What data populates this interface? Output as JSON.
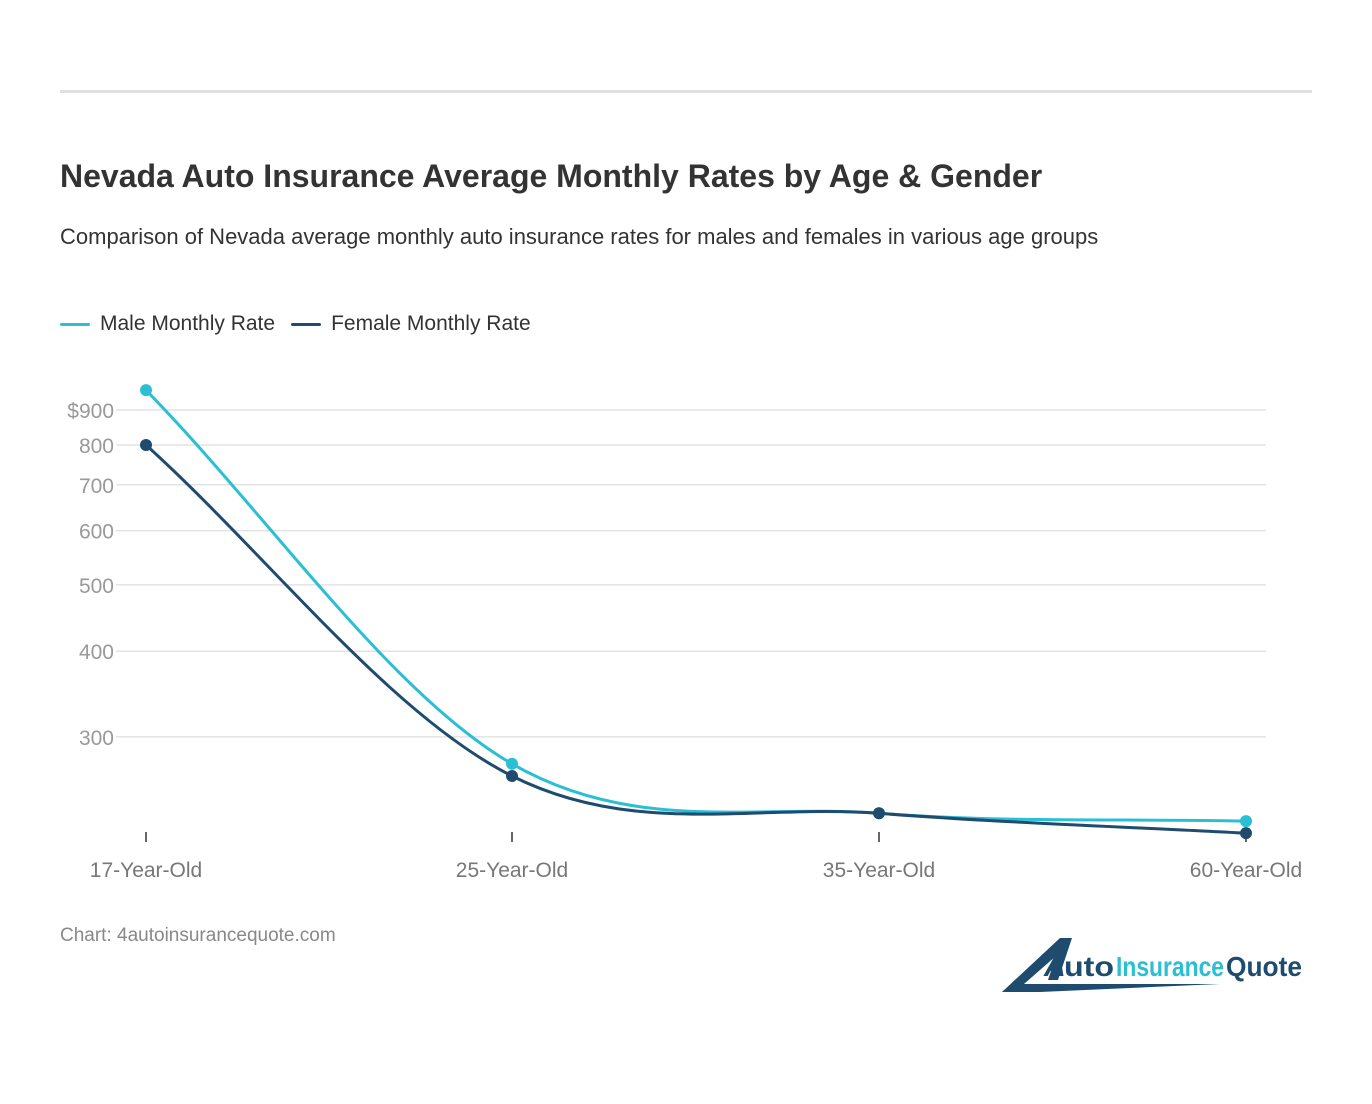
{
  "title": "Nevada Auto Insurance Average Monthly Rates by Age & Gender",
  "subtitle": "Comparison of Nevada average monthly auto insurance rates for males and females in various age groups",
  "source": "Chart: 4autoinsurancequote.com",
  "logo_text": "4AutoInsuranceQuote",
  "chart_data": {
    "type": "line",
    "categories": [
      "17-Year-Old",
      "25-Year-Old",
      "35-Year-Old",
      "60-Year-Old"
    ],
    "series": [
      {
        "name": "Male Monthly Rate",
        "color": "#2bbfd4",
        "values": [
          962,
          274,
          232,
          226
        ]
      },
      {
        "name": "Female Monthly Rate",
        "color": "#1e4b6e",
        "values": [
          800,
          263,
          232,
          217
        ]
      }
    ],
    "y_scale": "log",
    "yticks": [
      300,
      400,
      500,
      600,
      700,
      800,
      900
    ],
    "ytick_labels": [
      "300",
      "400",
      "500",
      "600",
      "700",
      "800",
      "$900"
    ],
    "grid": true,
    "legend": "top-left",
    "curve": "smooth"
  }
}
